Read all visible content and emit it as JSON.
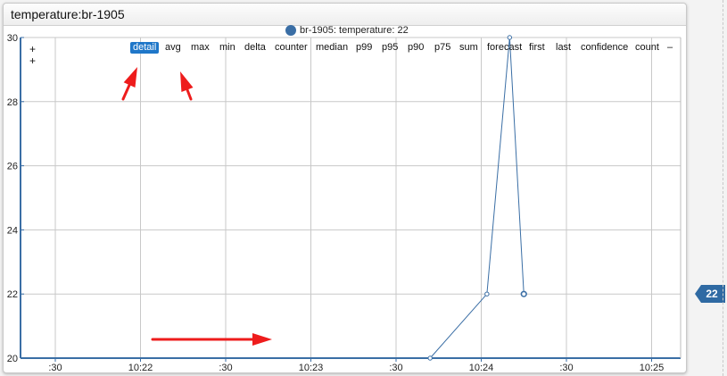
{
  "widget": {
    "title": "temperature:br-1905"
  },
  "legend": {
    "label": "br-1905: temperature: 22"
  },
  "menu": {
    "plus_top": "+",
    "plus_bottom": "+",
    "stats": [
      "detail",
      "avg",
      "max",
      "min",
      "delta",
      "counter",
      "median",
      "p99",
      "p95",
      "p90",
      "p75",
      "sum",
      "forecast",
      "first",
      "last",
      "confidence",
      "count",
      "–"
    ],
    "active": "detail"
  },
  "badge": {
    "value": "22"
  },
  "colors": {
    "series": "#3a6ea5",
    "grid": "#c8c8c8",
    "axis": "#3a6ea5",
    "active_stat": "#1f77c9",
    "badge": "#2f6aa3",
    "arrow": "#ee1c1c"
  },
  "chart_data": {
    "type": "line",
    "title": "",
    "xlabel": "",
    "ylabel": "",
    "x_tick_labels": [
      ":30",
      "10:22",
      ":30",
      "10:23",
      ":30",
      "10:24",
      ":30",
      "10:25"
    ],
    "y_tick_labels": [
      "20",
      "22",
      "24",
      "26",
      "28",
      "30"
    ],
    "ylim": [
      20,
      30
    ],
    "grid": true,
    "legend_position": "top-center",
    "series": [
      {
        "name": "br-1905: temperature",
        "x": [
          "10:23:42",
          "10:24:02",
          "10:24:10",
          "10:24:15"
        ],
        "y": [
          20,
          22,
          30,
          22
        ]
      }
    ]
  }
}
